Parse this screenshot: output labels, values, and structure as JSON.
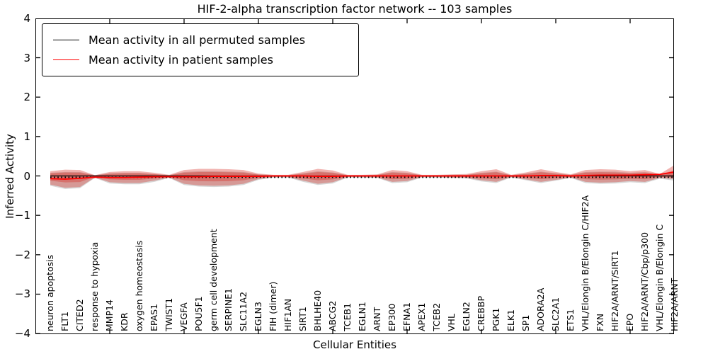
{
  "chart_data": {
    "type": "line",
    "title": "HIF-2-alpha transcription factor network -- 103 samples",
    "xlabel": "Cellular Entities",
    "ylabel": "Inferred Activity",
    "ylim": [
      -4,
      4
    ],
    "ytick_labels": [
      "4",
      "3",
      "2",
      "1",
      "0",
      "−1",
      "−2",
      "−3",
      "−4"
    ],
    "grid": false,
    "legend_position": "upper left",
    "categories": [
      "neuron apoptosis",
      "FLT1",
      "CITED2",
      "response to hypoxia",
      "MMP14",
      "KDR",
      "oxygen homeostasis",
      "EPAS1",
      "TWIST1",
      "VEGFA",
      "POU5F1",
      "germ cell development",
      "SERPINE1",
      "SLC11A2",
      "EGLN3",
      "FIH (dimer)",
      "HIF1AN",
      "SIRT1",
      "BHLHE40",
      "ABCG2",
      "TCEB1",
      "EGLN1",
      "ARNT",
      "EP300",
      "EFNA1",
      "APEX1",
      "TCEB2",
      "VHL",
      "EGLN2",
      "CREBBP",
      "PGK1",
      "ELK1",
      "SP1",
      "ADORA2A",
      "SLC2A1",
      "ETS1",
      "VHL/Elongin B/Elongin C/HIF2A",
      "FXN",
      "HIF2A/ARNT/SIRT1",
      "EPO",
      "HIF2A/ARNT/Cbp/p300",
      "VHL/Elongin B/Elongin C",
      "HIF2A/ARNT"
    ],
    "series": [
      {
        "name": "Mean activity in all permuted samples",
        "color": "#000000",
        "band_color": "rgba(120,120,120,0.30)",
        "values": [
          0,
          0,
          0,
          0,
          0,
          0,
          0,
          0,
          0,
          0,
          0,
          0,
          0,
          0,
          0,
          0,
          0,
          0,
          0,
          0,
          0,
          0,
          0,
          0,
          0,
          0,
          0,
          0,
          0,
          0,
          0,
          0,
          0,
          0,
          0,
          0,
          0,
          0,
          0,
          0,
          0,
          0,
          0
        ],
        "band_upper": [
          0.08,
          0.1,
          0.1,
          0.02,
          0.07,
          0.08,
          0.08,
          0.05,
          0.02,
          0.1,
          0.12,
          0.12,
          0.11,
          0.1,
          0.04,
          0.02,
          0.02,
          0.07,
          0.12,
          0.09,
          0.02,
          0.02,
          0.03,
          0.1,
          0.08,
          0.02,
          0.02,
          0.03,
          0.03,
          0.08,
          0.11,
          0.02,
          0.06,
          0.11,
          0.07,
          0.03,
          0.1,
          0.11,
          0.11,
          0.08,
          0.1,
          0.04,
          0.1
        ],
        "band_lower": [
          -0.25,
          -0.33,
          -0.31,
          -0.05,
          -0.19,
          -0.21,
          -0.21,
          -0.15,
          -0.05,
          -0.23,
          -0.27,
          -0.28,
          -0.27,
          -0.23,
          -0.1,
          -0.04,
          -0.04,
          -0.15,
          -0.23,
          -0.19,
          -0.04,
          -0.04,
          -0.05,
          -0.18,
          -0.16,
          -0.04,
          -0.04,
          -0.05,
          -0.06,
          -0.14,
          -0.18,
          -0.04,
          -0.11,
          -0.18,
          -0.12,
          -0.05,
          -0.18,
          -0.2,
          -0.19,
          -0.16,
          -0.18,
          -0.07,
          -0.12
        ]
      },
      {
        "name": "Mean activity in patient samples",
        "color": "#ff0000",
        "band_color": "rgba(214,39,32,0.35)",
        "values": [
          -0.07,
          -0.08,
          -0.06,
          -0.03,
          -0.04,
          -0.04,
          -0.03,
          -0.02,
          -0.02,
          -0.02,
          -0.02,
          -0.01,
          -0.01,
          -0.01,
          -0.01,
          0,
          0,
          0,
          -0.01,
          -0.01,
          0,
          0,
          0,
          0,
          0,
          0,
          0,
          0,
          0,
          0,
          0,
          0,
          0,
          0.01,
          0.01,
          0,
          0.01,
          0.02,
          0.02,
          0.02,
          0.03,
          0.04,
          0.1
        ],
        "band_upper": [
          0.12,
          0.16,
          0.15,
          0.02,
          0.1,
          0.12,
          0.12,
          0.08,
          0.03,
          0.15,
          0.18,
          0.18,
          0.17,
          0.15,
          0.06,
          0.03,
          0.03,
          0.1,
          0.18,
          0.14,
          0.03,
          0.03,
          0.04,
          0.15,
          0.12,
          0.03,
          0.03,
          0.04,
          0.05,
          0.12,
          0.17,
          0.03,
          0.09,
          0.17,
          0.1,
          0.04,
          0.15,
          0.17,
          0.16,
          0.12,
          0.15,
          0.05,
          0.28
        ],
        "band_lower": [
          -0.22,
          -0.3,
          -0.28,
          -0.04,
          -0.16,
          -0.18,
          -0.18,
          -0.12,
          -0.04,
          -0.2,
          -0.24,
          -0.25,
          -0.24,
          -0.2,
          -0.08,
          -0.03,
          -0.03,
          -0.12,
          -0.2,
          -0.16,
          -0.03,
          -0.03,
          -0.04,
          -0.15,
          -0.13,
          -0.03,
          -0.03,
          -0.04,
          -0.05,
          -0.11,
          -0.15,
          -0.03,
          -0.09,
          -0.15,
          -0.1,
          -0.04,
          -0.15,
          -0.17,
          -0.16,
          -0.13,
          -0.15,
          -0.05,
          -0.08
        ]
      }
    ]
  }
}
